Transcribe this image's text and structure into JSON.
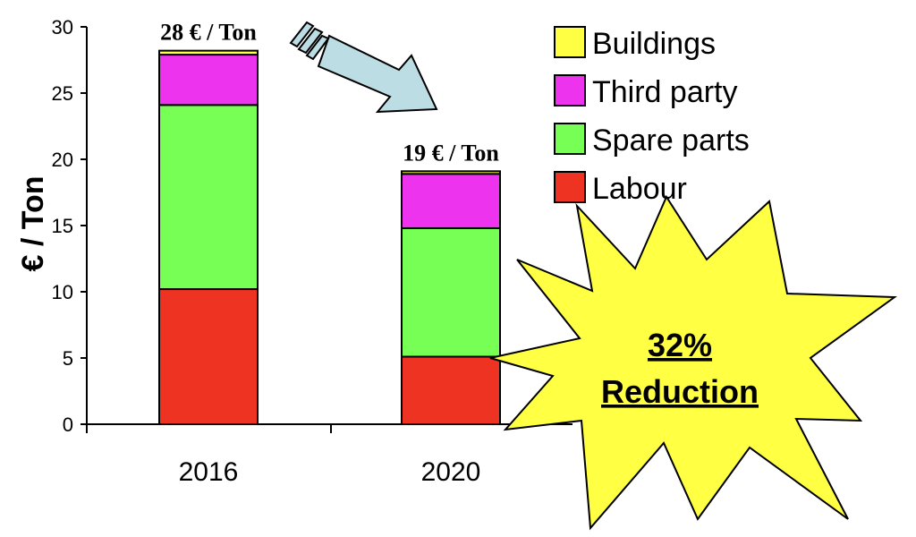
{
  "chart_data": {
    "type": "bar",
    "stacked": true,
    "categories": [
      "2016",
      "2020"
    ],
    "series": [
      {
        "name": "Labour",
        "values": [
          10.2,
          5.1
        ],
        "color": "#ee3322"
      },
      {
        "name": "Spare parts",
        "values": [
          13.9,
          9.7
        ],
        "color": "#77ff55"
      },
      {
        "name": "Third party",
        "values": [
          3.8,
          4.1
        ],
        "color": "#ee33ee"
      },
      {
        "name": "Buildings",
        "values": [
          0.3,
          0.2
        ],
        "color": "#ffff44"
      }
    ],
    "totals_labels": [
      "28 € / Ton",
      "19 € / Ton"
    ],
    "title": "",
    "xlabel": "",
    "ylabel": "€ / Ton",
    "ylim": [
      0,
      30
    ],
    "yticks": [
      "0",
      "5",
      "10",
      "15",
      "20",
      "25",
      "30"
    ],
    "legend": "top-right",
    "grid": false
  },
  "callout": {
    "percent": "32%",
    "text": "Reduction",
    "fill_color": "#ffff44"
  },
  "arrow": {
    "fill_color": "#bcdde3",
    "icon": "arrow-down-right-icon"
  }
}
